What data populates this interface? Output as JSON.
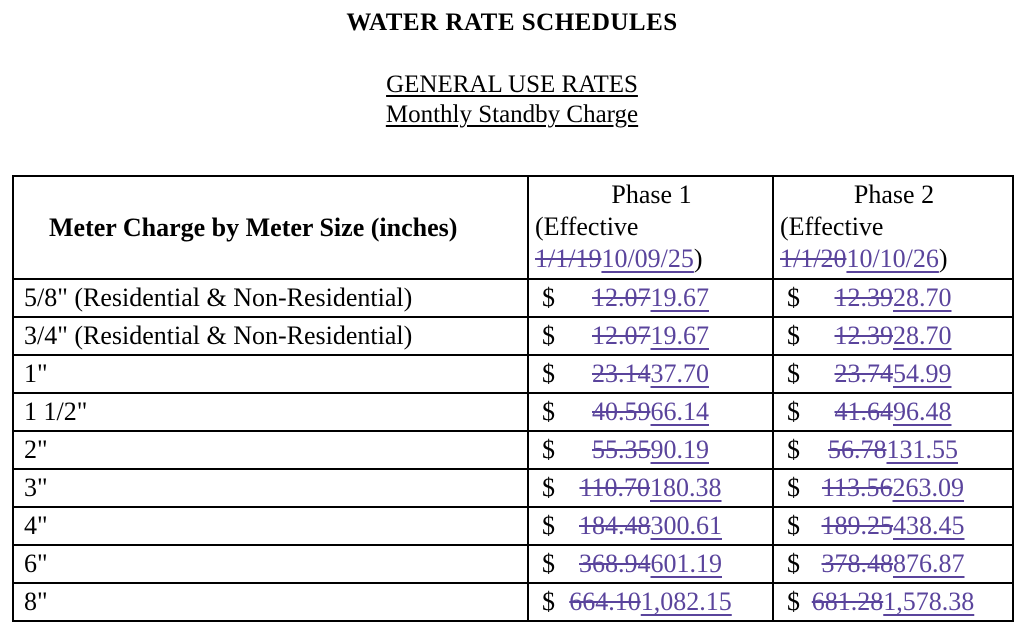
{
  "theme": {
    "revision_color": "#5a449c",
    "text_color": "#000000",
    "background_color": "#ffffff"
  },
  "page": {
    "title": "WATER RATE SCHEDULES",
    "subtitle1": "GENERAL USE RATES",
    "subtitle2": "Monthly Standby Charge"
  },
  "table": {
    "currency_symbol": "$",
    "header": {
      "meter_column": "Meter Charge by Meter Size (inches)",
      "phase1": {
        "name": "Phase 1",
        "effective_prefix": "(Effective",
        "old_date": "1/1/19",
        "new_date": "10/09/25",
        "suffix": ")"
      },
      "phase2": {
        "name": "Phase 2",
        "effective_prefix": "(Effective",
        "old_date": "1/1/20",
        "new_date": "10/10/26",
        "suffix": ")"
      }
    },
    "rows": [
      {
        "meter_size": "5/8\" (Residential & Non-Residential)",
        "phase1_old": "12.07",
        "phase1_new": "19.67",
        "phase2_old": "12.39",
        "phase2_new": "28.70"
      },
      {
        "meter_size": "3/4\" (Residential & Non-Residential)",
        "phase1_old": "12.07",
        "phase1_new": "19.67",
        "phase2_old": "12.39",
        "phase2_new": "28.70"
      },
      {
        "meter_size": "1\"",
        "phase1_old": "23.14",
        "phase1_new": "37.70",
        "phase2_old": "23.74",
        "phase2_new": "54.99"
      },
      {
        "meter_size": "1 1/2\"",
        "phase1_old": "40.59",
        "phase1_new": "66.14",
        "phase2_old": "41.64",
        "phase2_new": "96.48"
      },
      {
        "meter_size": "2\"",
        "phase1_old": "55.35",
        "phase1_new": "90.19",
        "phase2_old": "56.78",
        "phase2_new": "131.55"
      },
      {
        "meter_size": "3\"",
        "phase1_old": "110.70",
        "phase1_new": "180.38",
        "phase2_old": "113.56",
        "phase2_new": "263.09"
      },
      {
        "meter_size": "4\"",
        "phase1_old": "184.48",
        "phase1_new": "300.61",
        "phase2_old": "189.25",
        "phase2_new": "438.45"
      },
      {
        "meter_size": "6\"",
        "phase1_old": "368.94",
        "phase1_new": "601.19",
        "phase2_old": "378.48",
        "phase2_new": "876.87"
      },
      {
        "meter_size": "8\"",
        "phase1_old": "664.10",
        "phase1_new": "1,082.15",
        "phase2_old": "681.28",
        "phase2_new": "1,578.38"
      }
    ]
  }
}
